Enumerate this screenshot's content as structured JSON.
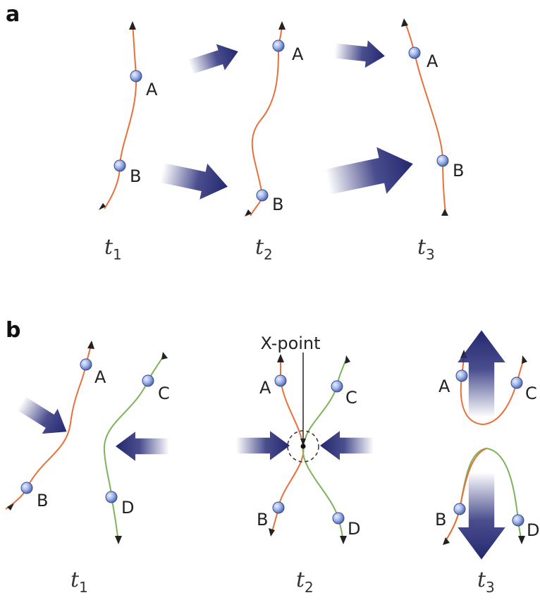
{
  "panels": [
    {
      "label": "a",
      "frames": [
        {
          "time": "t",
          "time_sub": "1",
          "points": [
            "A",
            "B"
          ]
        },
        {
          "time": "t",
          "time_sub": "2",
          "points": [
            "A",
            "B"
          ]
        },
        {
          "time": "t",
          "time_sub": "3",
          "points": [
            "A",
            "B"
          ]
        }
      ]
    },
    {
      "label": "b",
      "frames": [
        {
          "time": "t",
          "time_sub": "1",
          "points": [
            "A",
            "B",
            "C",
            "D"
          ]
        },
        {
          "time": "t",
          "time_sub": "2",
          "annotation": "X-point",
          "points": [
            "A",
            "C",
            "B",
            "D"
          ]
        },
        {
          "time": "t",
          "time_sub": "3",
          "points": [
            "A",
            "C",
            "B",
            "D"
          ]
        }
      ]
    }
  ]
}
